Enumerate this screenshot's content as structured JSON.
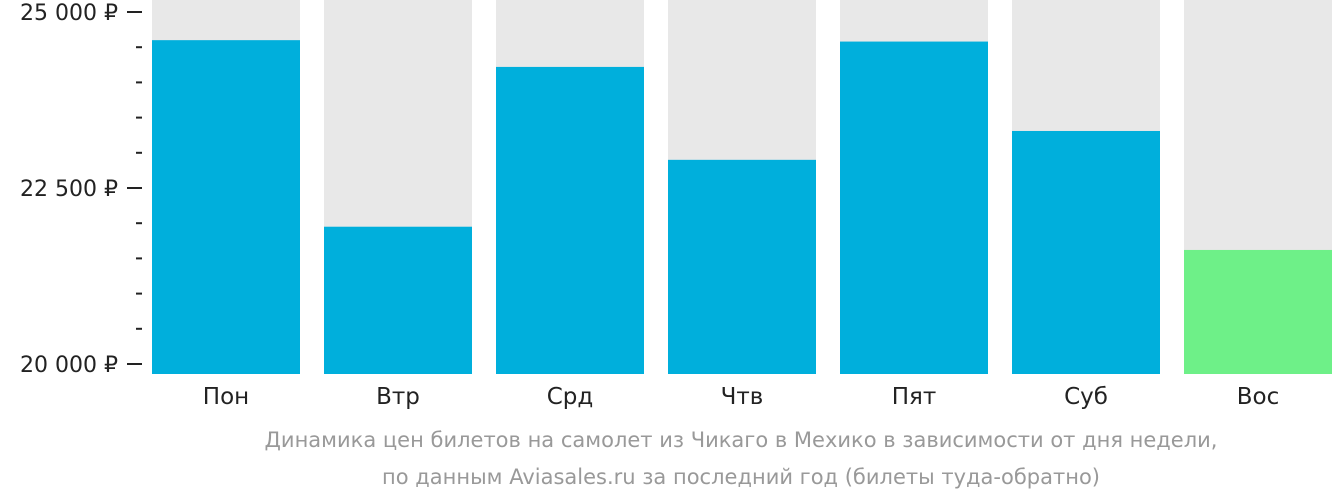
{
  "chart_data": {
    "type": "bar",
    "categories": [
      "Пон",
      "Втр",
      "Срд",
      "Чтв",
      "Пят",
      "Суб",
      "Вос"
    ],
    "values": [
      24600,
      21950,
      24220,
      22900,
      24580,
      23310,
      21620
    ],
    "ylim": [
      20000,
      25000
    ],
    "yticks": [
      20000,
      22500,
      25000
    ],
    "ytick_labels": [
      "20 000 ₽",
      "22 500 ₽",
      "25 000 ₽"
    ],
    "minor_tick_step": 500,
    "grid": false,
    "highlight_index": 6,
    "colors": {
      "bar": "#00afdc",
      "highlight": "#6ef088",
      "bar_track": "#e8e8e8",
      "axis": "#222222"
    }
  },
  "caption": {
    "line1": "Динамика цен билетов на самолет из Чикаго в Мехико в зависимости от дня недели,",
    "line2": "по данным Aviasales.ru за последний год (билеты туда-обратно)"
  }
}
